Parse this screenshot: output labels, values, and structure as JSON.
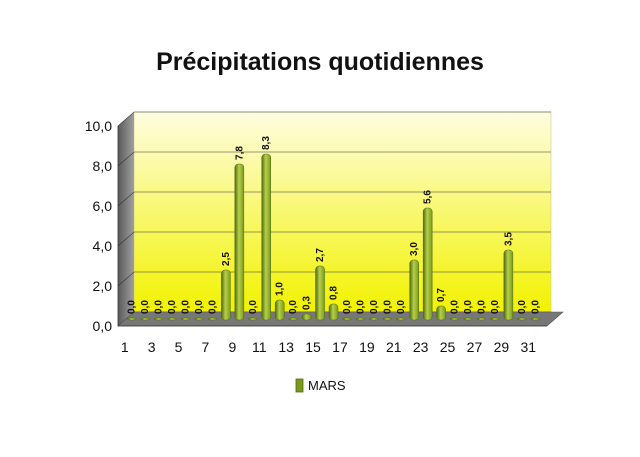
{
  "chart_data": {
    "type": "bar",
    "title": "Précipitations quotidiennes",
    "categories": [
      "1",
      "2",
      "3",
      "4",
      "5",
      "6",
      "7",
      "8",
      "9",
      "10",
      "11",
      "12",
      "13",
      "14",
      "15",
      "16",
      "17",
      "18",
      "19",
      "20",
      "21",
      "22",
      "23",
      "24",
      "25",
      "26",
      "27",
      "28",
      "29",
      "30",
      "31"
    ],
    "x_tick_labels": [
      "1",
      "3",
      "5",
      "7",
      "9",
      "11",
      "13",
      "15",
      "17",
      "19",
      "21",
      "23",
      "25",
      "27",
      "29",
      "31"
    ],
    "y_tick_labels": [
      "0,0",
      "2,0",
      "4,0",
      "6,0",
      "8,0",
      "10,0"
    ],
    "series": [
      {
        "name": "MARS",
        "values": [
          0,
          0,
          0,
          0,
          0,
          0,
          0,
          2.5,
          7.8,
          0,
          8.3,
          1.0,
          0,
          0.3,
          2.7,
          0.8,
          0,
          0,
          0,
          0,
          0,
          3.0,
          5.6,
          0.7,
          0,
          0,
          0,
          0,
          3.5,
          0,
          0
        ],
        "labels": [
          "0,0",
          "0,0",
          "0,0",
          "0,0",
          "0,0",
          "0,0",
          "0,0",
          "2,5",
          "7,8",
          "0,0",
          "8,3",
          "1,0",
          "0,0",
          "0,3",
          "2,7",
          "0,8",
          "0,0",
          "0,0",
          "0,0",
          "0,0",
          "0,0",
          "3,0",
          "5,6",
          "0,7",
          "0,0",
          "0,0",
          "0,0",
          "0,0",
          "3,5",
          "0,0",
          "0,0"
        ]
      }
    ],
    "ylim": [
      0,
      10
    ],
    "grid": true,
    "legend_position": "bottom",
    "colors": {
      "bar": "#7a9a1e",
      "bar_dark": "#4e6b0d",
      "bar_light": "#b7cf4a",
      "wall_top": "#fffde0",
      "wall_bottom": "#f2f200",
      "side_wall": "#8a8a8a",
      "floor": "#777777"
    }
  }
}
